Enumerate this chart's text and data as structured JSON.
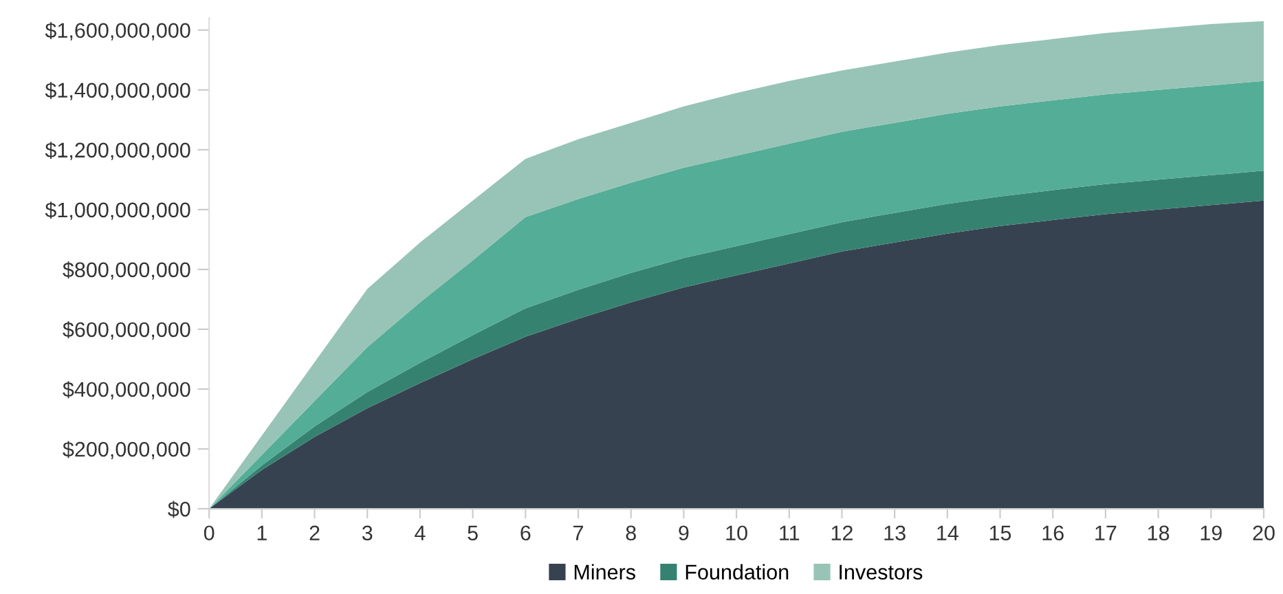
{
  "chart_data": {
    "type": "area",
    "stacked": true,
    "legend": "bottom",
    "x": [
      0,
      1,
      2,
      3,
      4,
      5,
      6,
      7,
      8,
      9,
      10,
      11,
      12,
      13,
      14,
      15,
      16,
      17,
      18,
      19,
      20
    ],
    "xlim": [
      0,
      20
    ],
    "xticks": [
      0,
      1,
      2,
      3,
      4,
      5,
      6,
      7,
      8,
      9,
      10,
      11,
      12,
      13,
      14,
      15,
      16,
      17,
      18,
      19,
      20
    ],
    "ylim": [
      0,
      1640000000
    ],
    "yticks": [
      {
        "value": 0,
        "label": "$0"
      },
      {
        "value": 200000000,
        "label": "$200,000,000"
      },
      {
        "value": 400000000,
        "label": "$400,000,000"
      },
      {
        "value": 600000000,
        "label": "$600,000,000"
      },
      {
        "value": 800000000,
        "label": "$800,000,000"
      },
      {
        "value": 1000000000,
        "label": "$1,000,000,000"
      },
      {
        "value": 1200000000,
        "label": "$1,200,000,000"
      },
      {
        "value": 1400000000,
        "label": "$1,400,000,000"
      },
      {
        "value": 1600000000,
        "label": "$1,600,000,000"
      }
    ],
    "series": [
      {
        "name": "Miners",
        "color": "#374251",
        "values": [
          0,
          130000000,
          240000000,
          336000000,
          420000000,
          500000000,
          575000000,
          635000000,
          690000000,
          740000000,
          780000000,
          820000000,
          860000000,
          890000000,
          920000000,
          945000000,
          965000000,
          985000000,
          1000000000,
          1015000000,
          1030000000
        ]
      },
      {
        "name": "Foundation",
        "color": "#368270",
        "values": [
          0,
          15000000,
          35000000,
          54000000,
          68000000,
          80000000,
          95000000,
          97000000,
          98000000,
          98000000,
          98000000,
          98000000,
          98000000,
          99000000,
          99000000,
          99000000,
          100000000,
          100000000,
          100000000,
          100000000,
          100000000
        ]
      },
      {
        "color": "#54ad97",
        "values": [
          0,
          35000000,
          85000000,
          150000000,
          202000000,
          250000000,
          305000000,
          303000000,
          302000000,
          302000000,
          302000000,
          302000000,
          302000000,
          301000000,
          301000000,
          301000000,
          300000000,
          300000000,
          300000000,
          300000000,
          300000000
        ]
      },
      {
        "name": "Investors",
        "color": "#97c4b6",
        "values": [
          0,
          65000000,
          130000000,
          195000000,
          200000000,
          200000000,
          195000000,
          200000000,
          200000000,
          205000000,
          210000000,
          210000000,
          205000000,
          205000000,
          205000000,
          205000000,
          205000000,
          205000000,
          205000000,
          205000000,
          200000000
        ]
      }
    ]
  }
}
